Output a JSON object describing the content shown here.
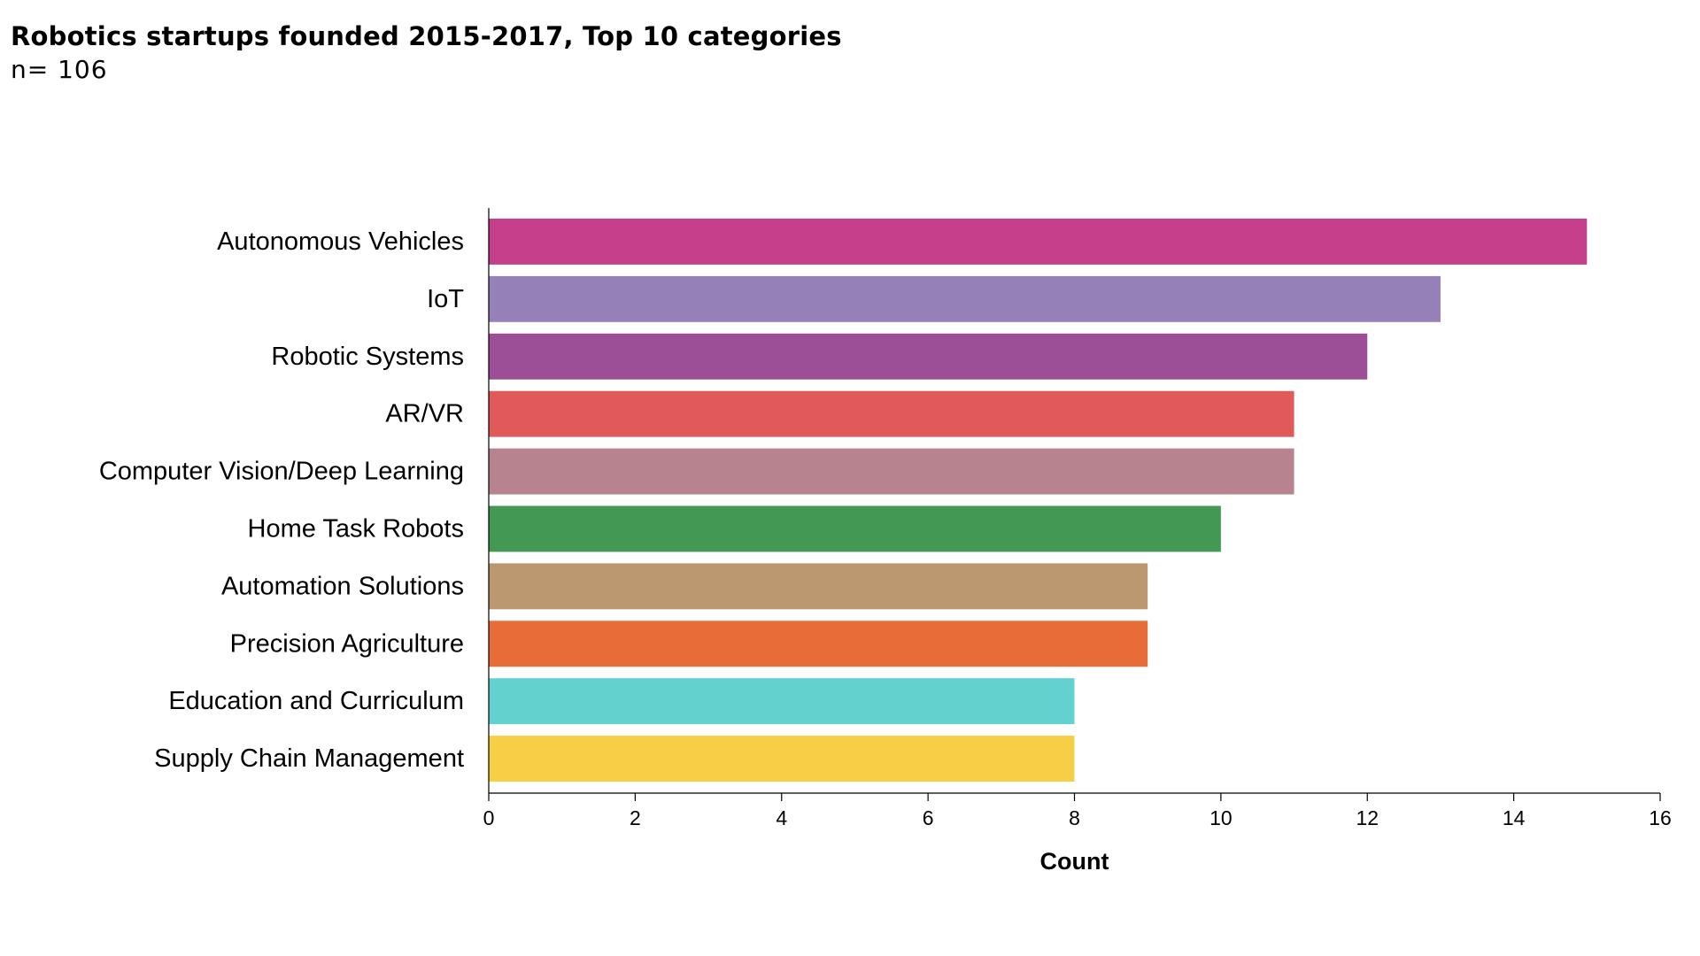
{
  "chart_data": {
    "type": "bar",
    "orientation": "horizontal",
    "title": "Robotics startups founded 2015-2017, Top 10 categories",
    "subtitle": "n= 106",
    "xlabel": "Count",
    "ylabel": "",
    "xlim": [
      0,
      16
    ],
    "xticks": [
      0,
      2,
      4,
      6,
      8,
      10,
      12,
      14,
      16
    ],
    "grid": false,
    "legend": "none",
    "categories": [
      "Autonomous Vehicles",
      "IoT",
      "Robotic Systems",
      "AR/VR",
      "Computer Vision/Deep Learning",
      "Home Task Robots",
      "Automation Solutions",
      "Precision Agriculture",
      "Education and Curriculum",
      "Supply Chain Management"
    ],
    "values": [
      15,
      13,
      12,
      11,
      11,
      10,
      9,
      9,
      8,
      8
    ],
    "colors": [
      "#c53f8b",
      "#9581b7",
      "#9c4f96",
      "#e05a5a",
      "#b7838f",
      "#439953",
      "#bb9870",
      "#e76c37",
      "#63d2cf",
      "#f7cf46"
    ]
  }
}
